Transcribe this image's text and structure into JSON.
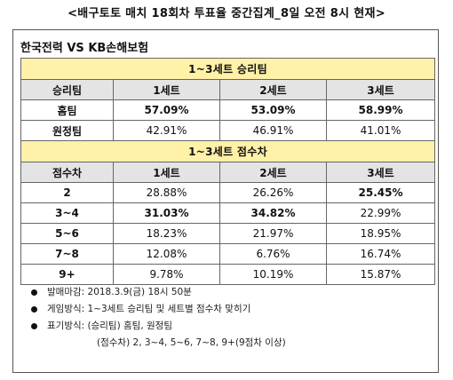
{
  "title": "<배구토토 매치 18회차 투표율 중간집계_8일 오전 8시 현재>",
  "match": "한국전력 VS KB손해보험",
  "winner_section": {
    "title": "1~3세트 승리팀",
    "headers": [
      "승리팀",
      "1세트",
      "2세트",
      "3세트"
    ],
    "rows": [
      {
        "label": "홈팀",
        "values": [
          "57.09%",
          "53.09%",
          "58.99%"
        ],
        "bold": [
          true,
          true,
          true
        ]
      },
      {
        "label": "원정팀",
        "values": [
          "42.91%",
          "46.91%",
          "41.01%"
        ],
        "bold": [
          false,
          false,
          false
        ]
      }
    ]
  },
  "margin_section": {
    "title": "1~3세트 점수차",
    "headers": [
      "점수차",
      "1세트",
      "2세트",
      "3세트"
    ],
    "rows": [
      {
        "label": "2",
        "values": [
          "28.88%",
          "26.26%",
          "25.45%"
        ],
        "bold": [
          false,
          false,
          true
        ]
      },
      {
        "label": "3~4",
        "values": [
          "31.03%",
          "34.82%",
          "22.99%"
        ],
        "bold": [
          true,
          true,
          false
        ]
      },
      {
        "label": "5~6",
        "values": [
          "18.23%",
          "21.97%",
          "18.95%"
        ],
        "bold": [
          false,
          false,
          false
        ]
      },
      {
        "label": "7~8",
        "values": [
          "12.08%",
          "6.76%",
          "16.74%"
        ],
        "bold": [
          false,
          false,
          false
        ]
      },
      {
        "label": "9+",
        "values": [
          "9.78%",
          "10.19%",
          "15.87%"
        ],
        "bold": [
          false,
          false,
          false
        ]
      }
    ]
  },
  "notes": [
    "발매마감: 2018.3.9(금) 18시 50분",
    "게임방식: 1~3세트 승리팀 및 세트별 점수차 맞히기",
    "표기방식: (승리팀) 홈팀, 원정팀"
  ],
  "note_continuation": "(점수차) 2, 3~4, 5~6, 7~8, 9+(9점차 이상)",
  "colors": {
    "section_bg": "#fff1a8",
    "header_bg": "#e4e4e4"
  }
}
